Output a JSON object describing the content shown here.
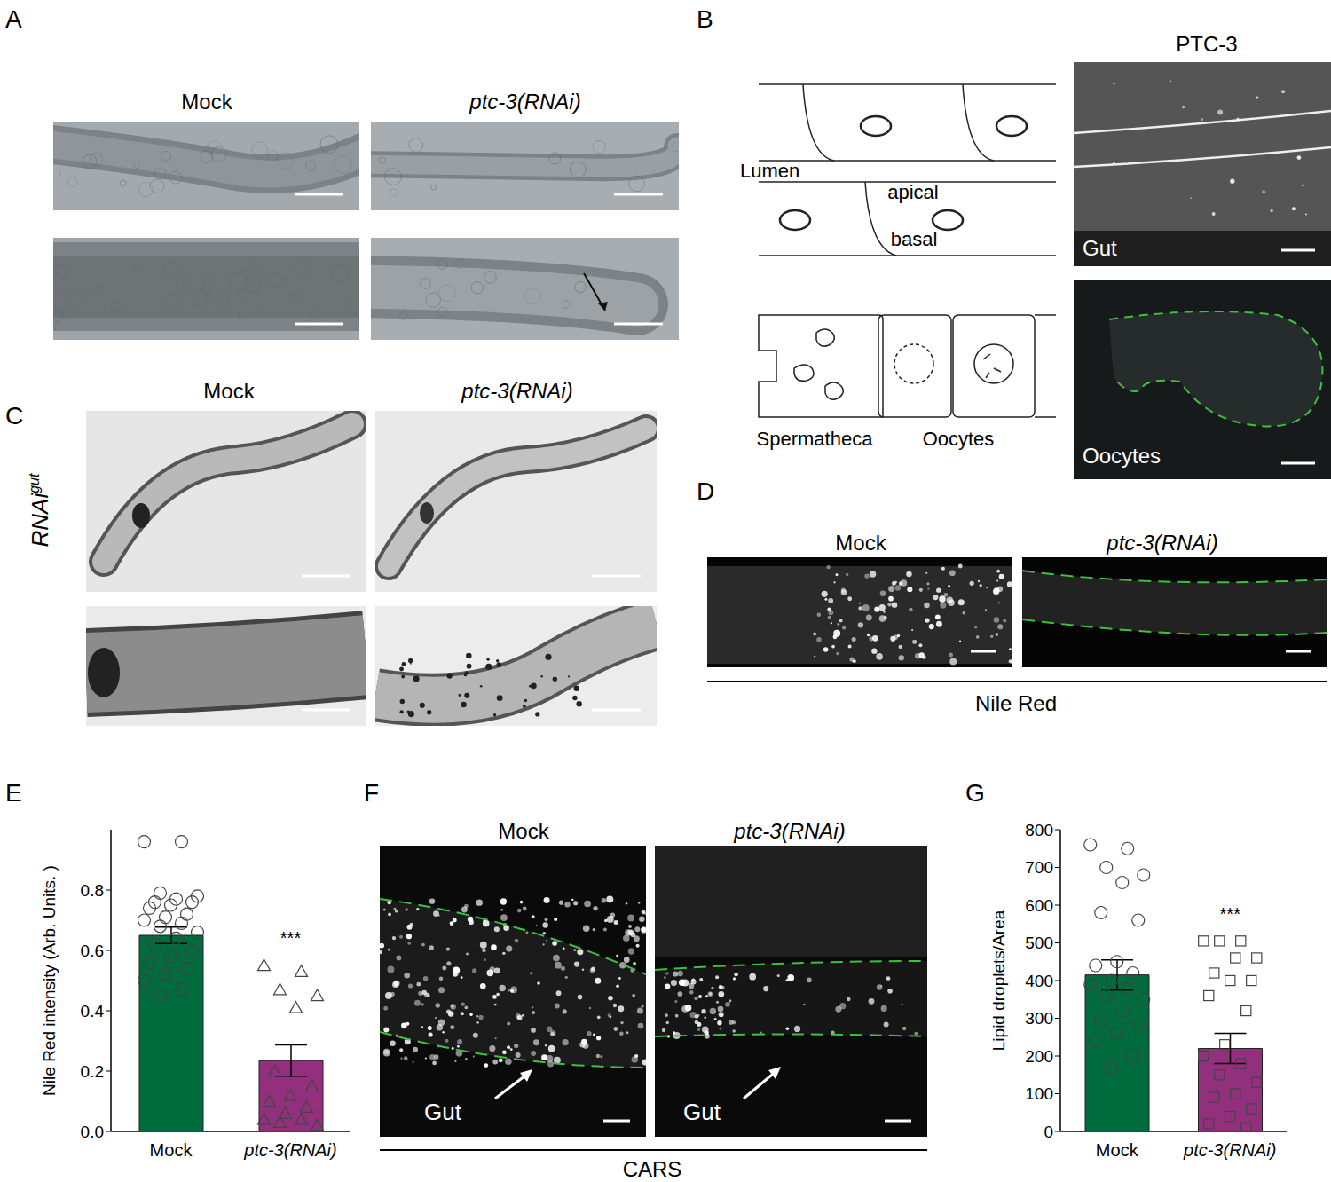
{
  "panels": {
    "A": {
      "letter": "A",
      "columns": [
        "Mock",
        "ptc-3(RNAi)"
      ]
    },
    "B": {
      "letter": "B",
      "title": "PTC-3",
      "diagram": {
        "lumen": "Lumen",
        "apical": "apical",
        "basal": "basal",
        "spermatheca": "Spermatheca",
        "oocytes": "Oocytes"
      },
      "images": [
        "Gut",
        "Oocytes"
      ]
    },
    "C": {
      "letter": "C",
      "columns": [
        "Mock",
        "ptc-3(RNAi)"
      ],
      "row_label": {
        "text": "RNAi",
        "superscript": "gut"
      }
    },
    "D": {
      "letter": "D",
      "columns": [
        "Mock",
        "ptc-3(RNAi)"
      ],
      "stain": "Nile Red"
    },
    "F": {
      "letter": "F",
      "columns": [
        "Mock",
        "ptc-3(RNAi)"
      ],
      "arrows": [
        "Gut",
        "Gut"
      ],
      "method": "CARS"
    }
  },
  "chart_data": [
    {
      "panel": "E",
      "type": "bar",
      "y_label": "Nile Red intensity (Arb. Units. )",
      "categories": [
        "Mock",
        "ptc-3(RNAi)"
      ],
      "values": [
        0.65,
        0.235
      ],
      "errors": [
        0.027,
        0.052
      ],
      "colors": [
        "#006b3c",
        "#93307e"
      ],
      "points": [
        {
          "marker": "circle",
          "values": [
            0.96,
            0.96,
            0.79,
            0.78,
            0.77,
            0.76,
            0.76,
            0.75,
            0.74,
            0.72,
            0.71,
            0.7,
            0.69,
            0.68,
            0.66,
            0.64,
            0.62,
            0.6,
            0.58,
            0.56,
            0.54,
            0.52,
            0.5,
            0.47,
            0.45
          ]
        },
        {
          "marker": "triangle",
          "values": [
            0.55,
            0.53,
            0.47,
            0.45,
            0.41,
            0.2,
            0.15,
            0.12,
            0.1,
            0.08,
            0.06,
            0.04,
            0.04,
            0.03,
            0.02
          ]
        }
      ],
      "significance": {
        "category": "ptc-3(RNAi)",
        "label": "***",
        "y": 0.62
      },
      "ylim": [
        0,
        1.0
      ],
      "yticks": [
        {
          "value": 0,
          "label": "0.0"
        },
        0.2,
        0.4,
        0.6,
        0.8
      ]
    },
    {
      "panel": "G",
      "type": "bar",
      "y_label": "Lipid droplets/Area",
      "categories": [
        "Mock",
        "ptc-3(RNAi)"
      ],
      "values": [
        415,
        220
      ],
      "errors": [
        40,
        40
      ],
      "colors": [
        "#006b3c",
        "#93307e"
      ],
      "points": [
        {
          "marker": "circle",
          "values": [
            760,
            750,
            700,
            680,
            660,
            580,
            560,
            450,
            440,
            420,
            400,
            390,
            380,
            360,
            350,
            320,
            300,
            280,
            260,
            240,
            200,
            170
          ]
        },
        {
          "marker": "square",
          "values": [
            505,
            505,
            505,
            460,
            460,
            420,
            400,
            400,
            360,
            320,
            230,
            200,
            180,
            150,
            130,
            100,
            90,
            60,
            40,
            20,
            10
          ]
        }
      ],
      "significance": {
        "category": "ptc-3(RNAi)",
        "label": "***",
        "y": 560
      },
      "ylim": [
        0,
        800
      ],
      "yticks": [
        0,
        100,
        200,
        300,
        400,
        500,
        600,
        700,
        800
      ]
    }
  ]
}
